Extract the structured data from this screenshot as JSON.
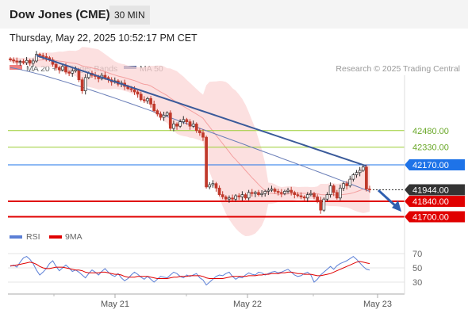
{
  "header": {
    "title": "Dow Jones (CME)",
    "timeframe": "30 MIN",
    "datetime": "Thursday, May 22, 2025 10:52:17 PM CET"
  },
  "legend": {
    "items": [
      {
        "label": "MA 20 + Bollinger Bands",
        "color": "#f08080"
      },
      {
        "label": "MA 50",
        "color": "#3b5998"
      }
    ],
    "credit": "Research © 2025 Trading Central"
  },
  "rsi_legend": {
    "items": [
      {
        "label": "RSI",
        "color": "#5b7fd6"
      },
      {
        "label": "9MA",
        "color": "#e00000"
      }
    ]
  },
  "chart_data": [
    {
      "type": "candlestick",
      "x_tick_labels": [
        "May 21",
        "May 22",
        "May 23"
      ],
      "price_levels": [
        {
          "label": "42480.00",
          "value": 42480,
          "style": "resistance",
          "color": "#9acd32"
        },
        {
          "label": "42330.00",
          "value": 42330,
          "style": "resistance",
          "color": "#9acd32"
        },
        {
          "label": "42170.00",
          "value": 42170,
          "style": "pivot",
          "color": "#1e73e8"
        },
        {
          "label": "41944.00",
          "value": 41944,
          "style": "last",
          "color": "#333333"
        },
        {
          "label": "41840.00",
          "value": 41840,
          "style": "support",
          "color": "#e00000"
        },
        {
          "label": "41700.00",
          "value": 41700,
          "style": "support",
          "color": "#e00000"
        }
      ],
      "close": [
        43120,
        43110,
        43100,
        43105,
        43095,
        43115,
        43090,
        43110,
        43170,
        43160,
        43150,
        43140,
        43120,
        43080,
        43050,
        43030,
        43060,
        43010,
        43000,
        43020,
        43030,
        42940,
        42840,
        42960,
        43000,
        42980,
        42970,
        42950,
        42980,
        42960,
        42940,
        42920,
        42930,
        42900,
        42910,
        42880,
        42860,
        42850,
        42830,
        42810,
        42760,
        42750,
        42770,
        42720,
        42660,
        42630,
        42600,
        42620,
        42640,
        42500,
        42540,
        42520,
        42560,
        42580,
        42560,
        42520,
        42540,
        42480,
        42460,
        42420,
        41970,
        41990,
        42000,
        41960,
        41900,
        41880,
        41860,
        41870,
        41860,
        41890,
        41880,
        41900,
        41870,
        41920,
        41910,
        41920,
        41900,
        41910,
        41930,
        41940,
        41950,
        41930,
        41920,
        41910,
        41930,
        41940,
        41920,
        41900,
        41890,
        41880,
        41870,
        41900,
        41910,
        41880,
        41850,
        41760,
        41860,
        41900,
        41980,
        41920,
        41870,
        41960,
        42000,
        41980,
        42040,
        42080,
        42100,
        42120,
        42150,
        41950,
        41944
      ],
      "ma50_endpoints": {
        "from": 43050,
        "to": 41930
      },
      "trend_line": {
        "from": 43160,
        "to": 42160
      },
      "projection_arrow": {
        "from": 41940,
        "to": 41760
      }
    },
    {
      "type": "line",
      "title": "RSI",
      "y_tick_labels": [
        "70",
        "50",
        "30"
      ],
      "series": [
        {
          "name": "RSI",
          "color": "#5b7fd6"
        },
        {
          "name": "9MA",
          "color": "#e00000"
        }
      ],
      "rsi": [
        52,
        54,
        51,
        58,
        64,
        66,
        62,
        56,
        47,
        40,
        44,
        49,
        56,
        60,
        52,
        46,
        50,
        54,
        50,
        45,
        47,
        44,
        40,
        36,
        42,
        47,
        44,
        40,
        45,
        49,
        44,
        40,
        38,
        42,
        36,
        32,
        35,
        40,
        44,
        41,
        37,
        34,
        38,
        34,
        30,
        34,
        38,
        37,
        36,
        40,
        44,
        42,
        38,
        36,
        40,
        38,
        40,
        42,
        36,
        33,
        26,
        30,
        34,
        38,
        40,
        39,
        42,
        44,
        38,
        34,
        37,
        36,
        40,
        43,
        41,
        40,
        44,
        43,
        40,
        42,
        44,
        45,
        43,
        44,
        46,
        48,
        44,
        40,
        38,
        39,
        42,
        44,
        40,
        30,
        34,
        40,
        44,
        48,
        52,
        48,
        53,
        56,
        58,
        60,
        63,
        66,
        62,
        57,
        52,
        48,
        47
      ],
      "rsi_ma": [
        53,
        53,
        54,
        55,
        56,
        57,
        58,
        57,
        55,
        52,
        50,
        49,
        49,
        50,
        51,
        51,
        51,
        50,
        49,
        48,
        47,
        47,
        46,
        44,
        43,
        43,
        43,
        43,
        44,
        44,
        43,
        42,
        41,
        41,
        40,
        38,
        37,
        37,
        37,
        38,
        38,
        38,
        38,
        37,
        36,
        35,
        35,
        35,
        35,
        36,
        37,
        37,
        38,
        38,
        38,
        39,
        39,
        39,
        39,
        38,
        36,
        35,
        35,
        35,
        35,
        35,
        36,
        37,
        38,
        38,
        38,
        38,
        38,
        39,
        39,
        39,
        40,
        40,
        41,
        41,
        42,
        42,
        42,
        43,
        43,
        44,
        44,
        43,
        42,
        42,
        41,
        41,
        41,
        40,
        39,
        39,
        40,
        41,
        42,
        44,
        46,
        48,
        50,
        52,
        54,
        56,
        58,
        59,
        58,
        57,
        56
      ]
    }
  ]
}
